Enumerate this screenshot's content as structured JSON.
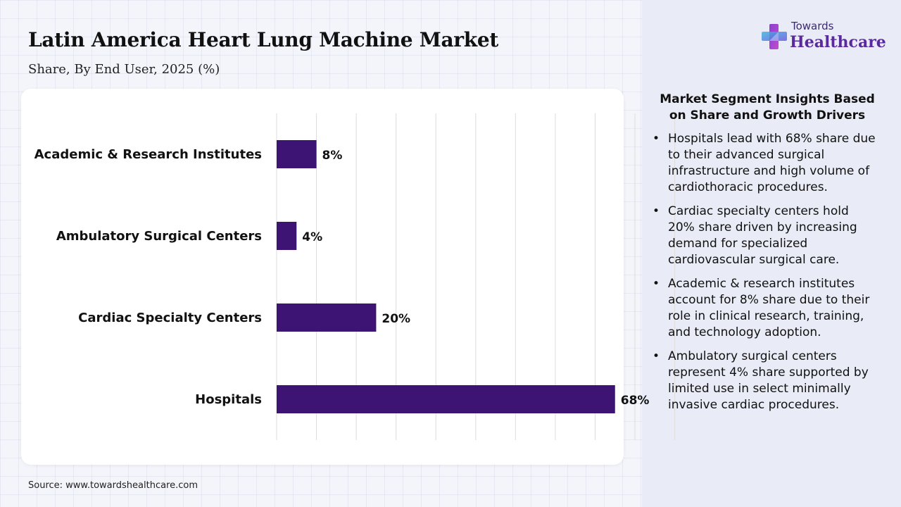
{
  "title": "Latin America Heart Lung Machine Market",
  "subtitle": "Share, By End User, 2025 (%)",
  "source": "Source: www.towardshealthcare.com",
  "logo": {
    "top": "Towards",
    "main": "Healthcare"
  },
  "colors": {
    "bar": "#3d1473",
    "accent": "#5b2a9a",
    "grid": "#dcdcdc"
  },
  "icons": {
    "logo": "plus-cross-icon"
  },
  "chart_data": {
    "type": "bar",
    "orientation": "horizontal",
    "categories": [
      "Academic & Research Institutes",
      "Ambulatory Surgical Centers",
      "Cardiac Specialty Centers",
      "Hospitals"
    ],
    "values": [
      8,
      4,
      20,
      68
    ],
    "value_labels": [
      "8%",
      "4%",
      "20%",
      "68%"
    ],
    "xlim": [
      0,
      80
    ],
    "grid": true,
    "legend": "none",
    "xlabel": "",
    "ylabel": ""
  },
  "insights": {
    "title": "Market Segment Insights Based on Share and Growth Drivers",
    "bullet": "•",
    "items": [
      "Hospitals lead with 68% share due to their advanced surgical infrastructure and high volume of cardiothoracic procedures.",
      "Cardiac specialty centers hold 20% share driven by increasing demand for specialized cardiovascular surgical care.",
      "Academic & research institutes account for 8% share due to their role in clinical research, training, and technology adoption.",
      "Ambulatory surgical centers represent 4% share supported by limited use in select minimally invasive cardiac procedures."
    ]
  }
}
